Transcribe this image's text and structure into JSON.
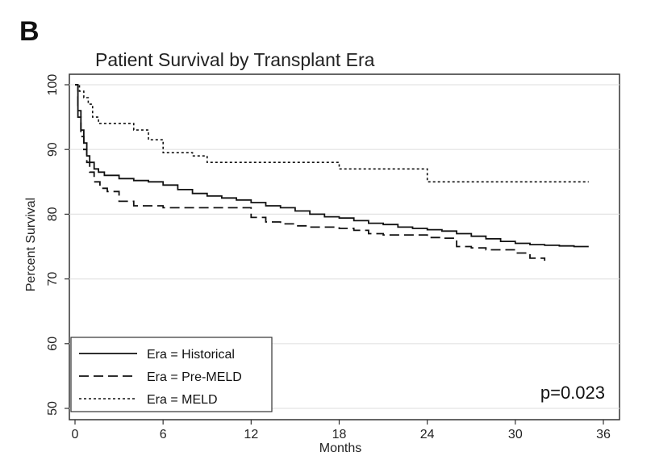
{
  "panel_label": "B",
  "chart_data": {
    "type": "line",
    "title": "Patient Survival by Transplant Era",
    "xlabel": "Months",
    "ylabel": "Percent Survival",
    "xlim": [
      0,
      36
    ],
    "ylim": [
      50,
      100
    ],
    "xticks": [
      0,
      6,
      12,
      18,
      24,
      30,
      36
    ],
    "yticks": [
      50,
      60,
      70,
      80,
      90,
      100
    ],
    "grid": true,
    "legend_position": "bottom-left",
    "annotation": "p=0.023",
    "series": [
      {
        "name": "Era = Historical",
        "style": "solid",
        "color": "#111111",
        "x": [
          0,
          0.2,
          0.4,
          0.6,
          0.8,
          1.0,
          1.3,
          1.6,
          2,
          3,
          4,
          5,
          6,
          7,
          8,
          9,
          10,
          11,
          12,
          13,
          14,
          15,
          16,
          17,
          18,
          19,
          20,
          21,
          22,
          23,
          24,
          25,
          26,
          27,
          28,
          29,
          30,
          31,
          32,
          33,
          34,
          35
        ],
        "y": [
          100,
          96,
          93,
          91,
          89,
          88,
          87,
          86.5,
          86,
          85.5,
          85.2,
          85,
          84.5,
          83.8,
          83.2,
          82.8,
          82.5,
          82.2,
          81.8,
          81.3,
          81,
          80.5,
          80,
          79.6,
          79.4,
          79,
          78.6,
          78.4,
          78,
          77.8,
          77.6,
          77.4,
          77,
          76.6,
          76.2,
          75.8,
          75.5,
          75.3,
          75.2,
          75.1,
          75,
          75
        ]
      },
      {
        "name": "Era = Pre-MELD",
        "style": "dashed",
        "color": "#111111",
        "x": [
          0,
          0.2,
          0.4,
          0.6,
          0.8,
          1.0,
          1.3,
          1.7,
          2.2,
          3,
          4,
          6,
          8,
          10,
          11,
          12,
          13,
          14,
          15,
          16,
          17,
          18,
          19,
          20,
          21,
          22,
          23,
          24,
          25,
          26,
          27,
          28,
          29,
          30,
          31,
          32
        ],
        "y": [
          100,
          95,
          92,
          90,
          88,
          86.5,
          85,
          84,
          83.5,
          82,
          81.3,
          81,
          81,
          81,
          81,
          79.5,
          78.8,
          78.5,
          78.2,
          78,
          78,
          77.8,
          77.5,
          77,
          76.8,
          76.8,
          76.8,
          76.4,
          76.3,
          75,
          74.8,
          74.5,
          74.5,
          74,
          73.2,
          72.8
        ]
      },
      {
        "name": "Era = MELD",
        "style": "dotted",
        "color": "#111111",
        "x": [
          0,
          0.3,
          0.6,
          0.9,
          1.2,
          1.6,
          2,
          3,
          4,
          5,
          6,
          7,
          8,
          9,
          10,
          12,
          14,
          16,
          17,
          18,
          20,
          22,
          24,
          25,
          27,
          30,
          33,
          35
        ],
        "y": [
          100,
          99,
          98,
          97,
          95,
          94,
          94,
          94,
          93,
          91.5,
          89.5,
          89.5,
          89,
          88,
          88,
          88,
          88,
          88,
          88,
          87,
          87,
          87,
          85,
          85,
          85,
          85,
          85,
          85
        ]
      }
    ]
  }
}
